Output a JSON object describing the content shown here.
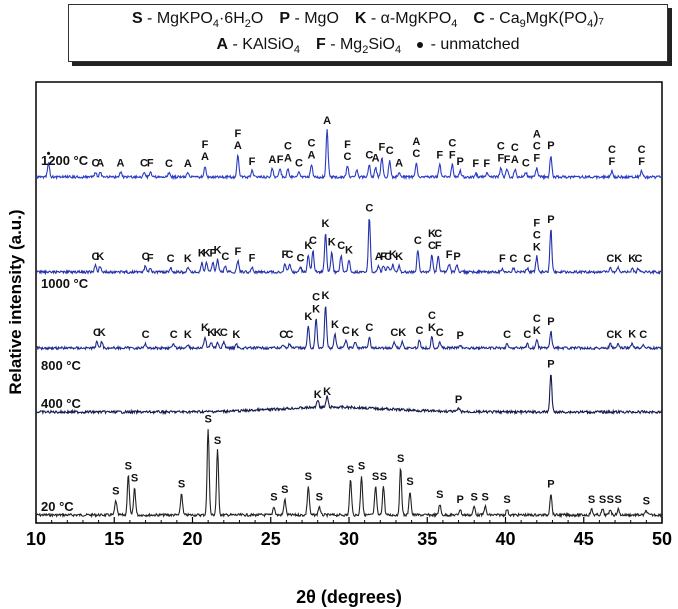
{
  "legend": {
    "row1": [
      {
        "code": "S",
        "text": "MgKPO",
        "sub1": "4",
        "tail": "·6H",
        "sub2": "2",
        "tail2": "O"
      },
      {
        "code": "P",
        "text": "MgO",
        "sub1": "",
        "tail": "",
        "sub2": "",
        "tail2": ""
      },
      {
        "code": "K",
        "text": "α-MgKPO",
        "sub1": "4",
        "tail": "",
        "sub2": "",
        "tail2": ""
      },
      {
        "code": "C",
        "text": "Ca",
        "sub1": "9",
        "tail": "MgK(PO",
        "sub2": "4",
        "tail2": ")₇"
      }
    ],
    "row2": [
      {
        "code": "A",
        "text": "KAlSiO",
        "sub1": "4",
        "tail": "",
        "sub2": "",
        "tail2": ""
      },
      {
        "code": "F",
        "text": "Mg",
        "sub1": "2",
        "tail": "SiO",
        "sub2": "4",
        "tail2": ""
      },
      {
        "code": "•",
        "text": "unmatched",
        "sub1": "",
        "tail": "",
        "sub2": "",
        "tail2": ""
      }
    ]
  },
  "chart_data": {
    "type": "line",
    "xlabel": "2θ (degrees)",
    "ylabel": "Relative intensity (a.u.)",
    "xlim": [
      10,
      50
    ],
    "xticks": [
      10,
      15,
      20,
      25,
      30,
      35,
      40,
      45,
      50
    ],
    "series": [
      {
        "name": "20 °C",
        "color": "#222222",
        "peaks": [
          [
            15.1,
            20
          ],
          [
            15.9,
            55
          ],
          [
            16.3,
            38
          ],
          [
            19.3,
            30
          ],
          [
            21.0,
            120
          ],
          [
            21.6,
            90
          ],
          [
            25.2,
            12
          ],
          [
            25.9,
            22
          ],
          [
            27.4,
            40
          ],
          [
            28.1,
            12
          ],
          [
            30.1,
            50
          ],
          [
            30.8,
            55
          ],
          [
            31.7,
            40
          ],
          [
            32.2,
            40
          ],
          [
            33.3,
            65
          ],
          [
            33.9,
            33
          ],
          [
            35.8,
            15
          ],
          [
            37.1,
            8
          ],
          [
            38.0,
            12
          ],
          [
            38.7,
            12
          ],
          [
            40.1,
            8
          ],
          [
            42.9,
            30
          ],
          [
            45.5,
            8
          ],
          [
            46.2,
            8
          ],
          [
            46.7,
            8
          ],
          [
            47.2,
            8
          ],
          [
            49.0,
            6
          ]
        ],
        "markers": [
          [
            "S",
            15.1
          ],
          [
            "S",
            15.9
          ],
          [
            "S",
            16.3
          ],
          [
            "S",
            19.3
          ],
          [
            "S",
            21.0
          ],
          [
            "S",
            21.6
          ],
          [
            "S",
            25.2
          ],
          [
            "S",
            25.9
          ],
          [
            "S",
            27.4
          ],
          [
            "S",
            28.1
          ],
          [
            "S",
            30.1
          ],
          [
            "S",
            30.8
          ],
          [
            "S",
            31.7
          ],
          [
            "S",
            32.2
          ],
          [
            "S",
            33.3
          ],
          [
            "S",
            33.9
          ],
          [
            "S",
            35.8
          ],
          [
            "P",
            37.1
          ],
          [
            "S",
            38.0
          ],
          [
            "S",
            38.7
          ],
          [
            "S",
            40.1
          ],
          [
            "P",
            42.9
          ],
          [
            "S",
            45.5
          ],
          [
            "S",
            46.2
          ],
          [
            "S",
            46.7
          ],
          [
            "S",
            47.2
          ],
          [
            "S",
            49.0
          ]
        ]
      },
      {
        "name": "400 °C",
        "color": "#141a4a",
        "peaks": [
          [
            28.0,
            10
          ],
          [
            28.6,
            14
          ],
          [
            37.0,
            4
          ],
          [
            42.9,
            48
          ]
        ],
        "markers": [
          [
            "K",
            28.0
          ],
          [
            "K",
            28.6
          ],
          [
            "P",
            37.0
          ],
          [
            "P",
            42.9
          ]
        ]
      },
      {
        "name": "800 °C",
        "color": "#1e2a8a",
        "peaks": [
          [
            13.9,
            8
          ],
          [
            14.2,
            8
          ],
          [
            17.0,
            5
          ],
          [
            18.8,
            5
          ],
          [
            19.7,
            5
          ],
          [
            20.8,
            14
          ],
          [
            21.2,
            8
          ],
          [
            21.6,
            8
          ],
          [
            22.0,
            8
          ],
          [
            22.8,
            5
          ],
          [
            25.8,
            5
          ],
          [
            26.2,
            5
          ],
          [
            27.4,
            28
          ],
          [
            27.9,
            38
          ],
          [
            28.5,
            55
          ],
          [
            29.1,
            18
          ],
          [
            29.8,
            10
          ],
          [
            30.4,
            8
          ],
          [
            31.3,
            14
          ],
          [
            32.9,
            8
          ],
          [
            33.4,
            8
          ],
          [
            34.5,
            10
          ],
          [
            35.3,
            14
          ],
          [
            35.8,
            8
          ],
          [
            37.1,
            4
          ],
          [
            40.1,
            5
          ],
          [
            41.4,
            5
          ],
          [
            42.0,
            10
          ],
          [
            42.9,
            22
          ],
          [
            46.7,
            5
          ],
          [
            47.2,
            5
          ],
          [
            48.1,
            6
          ],
          [
            48.8,
            5
          ]
        ],
        "markers": [
          [
            "C",
            13.9
          ],
          [
            "K",
            14.2
          ],
          [
            "C",
            17.0
          ],
          [
            "C",
            18.8
          ],
          [
            "K",
            19.7
          ],
          [
            "K",
            20.8
          ],
          [
            "K",
            21.2
          ],
          [
            "K",
            21.6
          ],
          [
            "C",
            22.0
          ],
          [
            "K",
            22.8
          ],
          [
            "C",
            25.8
          ],
          [
            "C",
            26.2
          ],
          [
            "K",
            27.4
          ],
          [
            "K",
            27.9
          ],
          [
            "C",
            27.9
          ],
          [
            "K",
            28.5
          ],
          [
            "K",
            29.1
          ],
          [
            "C",
            29.8
          ],
          [
            "K",
            30.4
          ],
          [
            "C",
            31.3
          ],
          [
            "C",
            32.9
          ],
          [
            "K",
            33.4
          ],
          [
            "C",
            34.5
          ],
          [
            "K",
            35.3
          ],
          [
            "C",
            35.3
          ],
          [
            "C",
            35.8
          ],
          [
            "P",
            37.1
          ],
          [
            "C",
            40.1
          ],
          [
            "C",
            41.4
          ],
          [
            "K",
            42.0
          ],
          [
            "C",
            42.0
          ],
          [
            "P",
            42.9
          ],
          [
            "C",
            46.7
          ],
          [
            "K",
            47.2
          ],
          [
            "K",
            48.1
          ],
          [
            "C",
            48.8
          ]
        ]
      },
      {
        "name": "1000 °C",
        "color": "#2332aa",
        "peaks": [
          [
            13.8,
            8
          ],
          [
            14.1,
            8
          ],
          [
            17.0,
            8
          ],
          [
            17.3,
            6
          ],
          [
            18.6,
            5
          ],
          [
            19.7,
            5
          ],
          [
            20.6,
            12
          ],
          [
            20.9,
            12
          ],
          [
            21.3,
            12
          ],
          [
            21.6,
            16
          ],
          [
            22.1,
            8
          ],
          [
            22.9,
            14
          ],
          [
            23.8,
            6
          ],
          [
            25.9,
            10
          ],
          [
            26.2,
            10
          ],
          [
            26.9,
            6
          ],
          [
            27.4,
            22
          ],
          [
            27.7,
            28
          ],
          [
            28.5,
            50
          ],
          [
            28.9,
            26
          ],
          [
            29.5,
            22
          ],
          [
            30.0,
            16
          ],
          [
            31.3,
            70
          ],
          [
            31.9,
            8
          ],
          [
            32.2,
            8
          ],
          [
            32.5,
            8
          ],
          [
            32.8,
            10
          ],
          [
            33.2,
            8
          ],
          [
            34.4,
            28
          ],
          [
            35.3,
            22
          ],
          [
            35.7,
            22
          ],
          [
            36.4,
            10
          ],
          [
            36.9,
            8
          ],
          [
            39.8,
            5
          ],
          [
            40.5,
            5
          ],
          [
            41.4,
            5
          ],
          [
            42.0,
            20
          ],
          [
            42.9,
            55
          ],
          [
            46.7,
            5
          ],
          [
            47.2,
            5
          ],
          [
            48.1,
            5
          ],
          [
            48.5,
            5
          ]
        ],
        "markers": [
          [
            "C",
            13.8
          ],
          [
            "K",
            14.1
          ],
          [
            "C",
            17.0
          ],
          [
            "F",
            17.3
          ],
          [
            "C",
            18.6
          ],
          [
            "K",
            19.7
          ],
          [
            "K",
            20.6
          ],
          [
            "K",
            20.9
          ],
          [
            "F",
            21.3
          ],
          [
            "K",
            21.6
          ],
          [
            "C",
            22.1
          ],
          [
            "F",
            22.9
          ],
          [
            "F",
            23.8
          ],
          [
            "F",
            25.9
          ],
          [
            "C",
            26.2
          ],
          [
            "C",
            26.9
          ],
          [
            "K",
            27.4
          ],
          [
            "C",
            27.7
          ],
          [
            "K",
            28.5
          ],
          [
            "K",
            28.9
          ],
          [
            "C",
            29.5
          ],
          [
            "K",
            30.0
          ],
          [
            "C",
            31.3
          ],
          [
            "A",
            31.9
          ],
          [
            "F",
            32.2
          ],
          [
            "C",
            32.5
          ],
          [
            "K",
            32.8
          ],
          [
            "K",
            33.2
          ],
          [
            "C",
            34.4
          ],
          [
            "C",
            35.3
          ],
          [
            "K",
            35.3
          ],
          [
            "F",
            35.7
          ],
          [
            "C",
            35.7
          ],
          [
            "F",
            36.4
          ],
          [
            "P",
            36.9
          ],
          [
            "F",
            39.8
          ],
          [
            "C",
            40.5
          ],
          [
            "C",
            41.4
          ],
          [
            "K",
            42.0
          ],
          [
            "C",
            42.0
          ],
          [
            "F",
            42.0
          ],
          [
            "P",
            42.9
          ],
          [
            "C",
            46.7
          ],
          [
            "K",
            47.2
          ],
          [
            "K",
            48.1
          ],
          [
            "C",
            48.5
          ]
        ]
      },
      {
        "name": "1200 °C",
        "color": "#2a3bc4",
        "peaks": [
          [
            10.8,
            18
          ],
          [
            13.8,
            6
          ],
          [
            14.1,
            6
          ],
          [
            15.4,
            6
          ],
          [
            16.9,
            6
          ],
          [
            17.3,
            6
          ],
          [
            18.5,
            5
          ],
          [
            19.7,
            5
          ],
          [
            20.8,
            14
          ],
          [
            22.9,
            28
          ],
          [
            23.8,
            8
          ],
          [
            25.1,
            10
          ],
          [
            25.6,
            10
          ],
          [
            26.1,
            12
          ],
          [
            26.8,
            6
          ],
          [
            27.6,
            16
          ],
          [
            28.6,
            60
          ],
          [
            29.9,
            14
          ],
          [
            30.5,
            8
          ],
          [
            31.3,
            16
          ],
          [
            31.7,
            12
          ],
          [
            32.1,
            26
          ],
          [
            32.6,
            22
          ],
          [
            33.2,
            6
          ],
          [
            34.3,
            18
          ],
          [
            35.8,
            16
          ],
          [
            36.6,
            16
          ],
          [
            37.1,
            8
          ],
          [
            38.1,
            5
          ],
          [
            38.8,
            5
          ],
          [
            39.7,
            12
          ],
          [
            40.1,
            10
          ],
          [
            40.6,
            10
          ],
          [
            41.3,
            6
          ],
          [
            42.0,
            12
          ],
          [
            42.9,
            28
          ],
          [
            46.8,
            8
          ],
          [
            48.7,
            8
          ]
        ],
        "markers": [
          [
            "•",
            10.8
          ],
          [
            "C",
            13.8
          ],
          [
            "A",
            14.1
          ],
          [
            "A",
            15.4
          ],
          [
            "C",
            16.9
          ],
          [
            "F",
            17.3
          ],
          [
            "C",
            18.5
          ],
          [
            "A",
            19.7
          ],
          [
            "A",
            20.8
          ],
          [
            "F",
            20.8
          ],
          [
            "A",
            22.9
          ],
          [
            "F",
            22.9
          ],
          [
            "F",
            23.8
          ],
          [
            "A",
            25.1
          ],
          [
            "F",
            25.6
          ],
          [
            "A",
            26.1
          ],
          [
            "C",
            26.1
          ],
          [
            "C",
            26.8
          ],
          [
            "A",
            27.6
          ],
          [
            "C",
            27.6
          ],
          [
            "A",
            28.6
          ],
          [
            "C",
            29.9
          ],
          [
            "F",
            29.9
          ],
          [
            "C",
            31.3
          ],
          [
            "A",
            31.7
          ],
          [
            "F",
            32.1
          ],
          [
            "C",
            32.6
          ],
          [
            "A",
            33.2
          ],
          [
            "C",
            34.3
          ],
          [
            "A",
            34.3
          ],
          [
            "F",
            35.8
          ],
          [
            "F",
            36.6
          ],
          [
            "C",
            36.6
          ],
          [
            "P",
            37.1
          ],
          [
            "F",
            38.1
          ],
          [
            "F",
            38.8
          ],
          [
            "F",
            39.7
          ],
          [
            "C",
            39.7
          ],
          [
            "F",
            40.1
          ],
          [
            "A",
            40.6
          ],
          [
            "C",
            40.6
          ],
          [
            "C",
            41.3
          ],
          [
            "F",
            42.0
          ],
          [
            "C",
            42.0
          ],
          [
            "A",
            42.0
          ],
          [
            "P",
            42.9
          ],
          [
            "F",
            46.8
          ],
          [
            "C",
            46.8
          ],
          [
            "F",
            48.7
          ],
          [
            "C",
            48.7
          ]
        ]
      }
    ]
  }
}
